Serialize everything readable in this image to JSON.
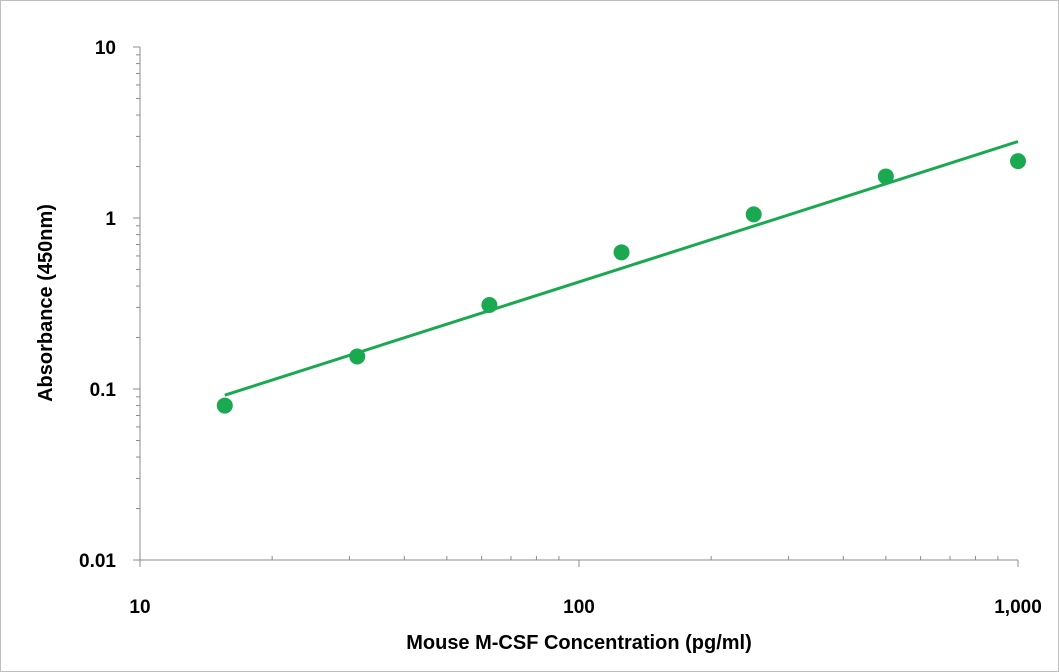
{
  "chart_data": {
    "type": "scatter",
    "title": "",
    "xlabel": "Mouse M-CSF Concentration (pg/ml)",
    "ylabel": "Absorbance (450nm)",
    "x_scale": "log",
    "y_scale": "log",
    "xlim": [
      10,
      1000
    ],
    "ylim": [
      0.01,
      10
    ],
    "x_tick_labels": [
      "10",
      "100",
      "1,000"
    ],
    "y_tick_labels": [
      "0.01",
      "0.1",
      "1",
      "10"
    ],
    "grid": false,
    "legend": "none",
    "marker_color": "#1aa851",
    "line_color": "#1aa851",
    "series": [
      {
        "type": "scatter",
        "x": [
          15.6,
          31.25,
          62.5,
          125,
          250,
          500,
          1000
        ],
        "y": [
          0.08,
          0.155,
          0.31,
          0.63,
          1.05,
          1.75,
          2.15
        ]
      },
      {
        "type": "line",
        "x": [
          15.6,
          1000
        ],
        "y": [
          0.092,
          2.8
        ]
      }
    ]
  }
}
